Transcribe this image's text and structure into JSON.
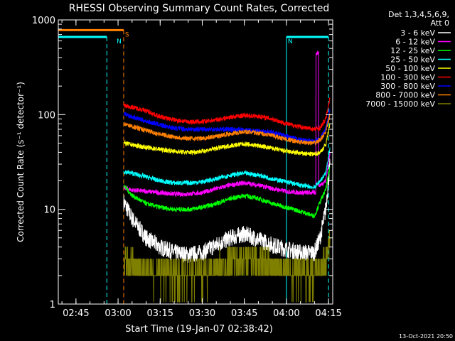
{
  "chart_data": {
    "type": "line",
    "title": "RHESSI Observing Summary Count Rates, Corrected",
    "xlabel": "Start Time (19-Jan-07 02:38:42)",
    "ylabel": "Corrected Count Rate (s⁻¹ detector⁻¹)",
    "yscale": "log",
    "ylim": [
      1,
      1000
    ],
    "xlim": [
      "02:38:42",
      "04:16:30"
    ],
    "x_ticks": [
      "02:45",
      "03:00",
      "03:15",
      "03:30",
      "03:45",
      "04:00",
      "04:15"
    ],
    "y_ticks": [
      "1",
      "10",
      "100",
      "1000"
    ],
    "legend": {
      "position": "top-right",
      "header": [
        "Det 1,3,4,5,6,9,",
        "Att 0"
      ]
    },
    "series": [
      {
        "name": "3 - 6 keV",
        "color": "#ffffff",
        "x": [
          "03:02:00",
          "03:05:00",
          "03:10:00",
          "03:15:00",
          "03:20:00",
          "03:25:00",
          "03:30:00",
          "03:35:00",
          "03:40:00",
          "03:45:00",
          "03:50:00",
          "03:55:00",
          "04:00:00",
          "04:05:00",
          "04:10:00",
          "04:12:00",
          "04:14:00",
          "04:15:30"
        ],
        "y": [
          12,
          8,
          5,
          4,
          3.5,
          3.3,
          3.5,
          4.2,
          5,
          5.5,
          4.8,
          4.2,
          3.8,
          3.5,
          3.5,
          5,
          10,
          30
        ]
      },
      {
        "name": "6 - 12 keV",
        "color": "#ff00ff",
        "x": [
          "03:02:00",
          "03:05:00",
          "03:10:00",
          "03:15:00",
          "03:20:00",
          "03:25:00",
          "03:30:00",
          "03:35:00",
          "03:40:00",
          "03:45:00",
          "03:50:00",
          "03:55:00",
          "04:00:00",
          "04:05:00",
          "04:10:00",
          "04:11:00",
          "04:12:00",
          "04:14:00",
          "04:15:30"
        ],
        "y": [
          17,
          16,
          15.5,
          15,
          14.5,
          14.5,
          15,
          16.5,
          18,
          19,
          18,
          16.5,
          15.5,
          15,
          15,
          450,
          18,
          20,
          40
        ]
      },
      {
        "name": "12 - 25 keV",
        "color": "#00ff00",
        "x": [
          "03:02:00",
          "03:05:00",
          "03:10:00",
          "03:15:00",
          "03:20:00",
          "03:25:00",
          "03:30:00",
          "03:35:00",
          "03:40:00",
          "03:45:00",
          "03:50:00",
          "03:55:00",
          "04:00:00",
          "04:05:00",
          "04:10:00",
          "04:12:00",
          "04:14:00",
          "04:15:30"
        ],
        "y": [
          18,
          14,
          11.5,
          10.5,
          10,
          10,
          10.5,
          11.5,
          13,
          14,
          13,
          11.5,
          10.5,
          9.5,
          8.5,
          12,
          16,
          28
        ]
      },
      {
        "name": "25 - 50 keV",
        "color": "#00ffff",
        "x": [
          "03:02:00",
          "03:05:00",
          "03:10:00",
          "03:15:00",
          "03:20:00",
          "03:25:00",
          "03:30:00",
          "03:35:00",
          "03:40:00",
          "03:45:00",
          "03:50:00",
          "03:55:00",
          "04:00:00",
          "04:05:00",
          "04:10:00",
          "04:12:00",
          "04:14:00",
          "04:15:30"
        ],
        "y": [
          25,
          24,
          22,
          20,
          19,
          19,
          19.5,
          21,
          23,
          24,
          23,
          21,
          19.5,
          18,
          17,
          20,
          24,
          45
        ]
      },
      {
        "name": "50 - 100 keV",
        "color": "#ffff00",
        "x": [
          "03:02:00",
          "03:05:00",
          "03:10:00",
          "03:15:00",
          "03:20:00",
          "03:25:00",
          "03:30:00",
          "03:35:00",
          "03:40:00",
          "03:45:00",
          "03:50:00",
          "03:55:00",
          "04:00:00",
          "04:05:00",
          "04:10:00",
          "04:12:00",
          "04:14:00",
          "04:15:30"
        ],
        "y": [
          50,
          48,
          45,
          43,
          41,
          40,
          41,
          44,
          47,
          49,
          47,
          44,
          41,
          39,
          38,
          40,
          48,
          80
        ]
      },
      {
        "name": "100 - 300 keV",
        "color": "#ff0000",
        "x": [
          "03:02:00",
          "03:05:00",
          "03:10:00",
          "03:15:00",
          "03:20:00",
          "03:25:00",
          "03:30:00",
          "03:35:00",
          "03:40:00",
          "03:45:00",
          "03:50:00",
          "03:55:00",
          "04:00:00",
          "04:05:00",
          "04:10:00",
          "04:12:00",
          "04:14:00",
          "04:15:30"
        ],
        "y": [
          125,
          120,
          110,
          95,
          88,
          84,
          84,
          88,
          94,
          98,
          96,
          90,
          80,
          74,
          70,
          72,
          90,
          150
        ]
      },
      {
        "name": "300 - 800 keV",
        "color": "#0000ff",
        "x": [
          "03:02:00",
          "03:05:00",
          "03:10:00",
          "03:15:00",
          "03:20:00",
          "03:25:00",
          "03:30:00",
          "03:35:00",
          "03:40:00",
          "03:45:00",
          "03:50:00",
          "03:55:00",
          "04:00:00",
          "04:05:00",
          "04:10:00",
          "04:12:00",
          "04:14:00",
          "04:15:30"
        ],
        "y": [
          102,
          95,
          85,
          78,
          72,
          70,
          70,
          70,
          70,
          69,
          67,
          65,
          59,
          54,
          52,
          56,
          70,
          115
        ]
      },
      {
        "name": "800 - 7000 keV",
        "color": "#ff8000",
        "x": [
          "03:02:00",
          "03:05:00",
          "03:10:00",
          "03:15:00",
          "03:20:00",
          "03:25:00",
          "03:30:00",
          "03:35:00",
          "03:40:00",
          "03:45:00",
          "03:50:00",
          "03:55:00",
          "04:00:00",
          "04:05:00",
          "04:10:00",
          "04:12:00",
          "04:14:00",
          "04:15:30"
        ],
        "y": [
          80,
          75,
          68,
          62,
          58,
          56,
          56,
          59,
          63,
          66,
          64,
          60,
          55,
          51,
          50,
          54,
          65,
          100
        ]
      },
      {
        "name": "7000 - 15000 keV",
        "color": "#808000",
        "x": [
          "03:02:00",
          "03:05:00",
          "03:10:00",
          "03:15:00",
          "03:20:00",
          "03:25:00",
          "03:30:00",
          "03:35:00",
          "03:40:00",
          "03:45:00",
          "03:50:00",
          "03:55:00",
          "04:00:00",
          "04:05:00",
          "04:10:00",
          "04:12:00",
          "04:14:00",
          "04:15:30"
        ],
        "y": [
          3,
          2.5,
          2.2,
          2.1,
          2,
          2,
          2,
          2.4,
          2.8,
          3,
          2.8,
          2.5,
          2.2,
          2,
          2,
          2.3,
          3,
          5
        ]
      }
    ],
    "annotations": [
      {
        "text": "N",
        "color": "#00ffff",
        "x": "03:00:00",
        "bar": [
          "02:38:42",
          "02:56:00"
        ],
        "bar_y": 660,
        "dashed_at": "02:56:00"
      },
      {
        "text": "S",
        "color": "#ff8000",
        "x": "03:03:00",
        "bar": [
          "02:38:42",
          "03:02:00"
        ],
        "bar_y": 780,
        "dashed_at": "03:02:00"
      },
      {
        "text": "N",
        "color": "#00ffff",
        "x": "04:01:00",
        "bar": [
          "04:00:00",
          "04:15:00"
        ],
        "bar_y": 660,
        "dashed_at": "04:15:00",
        "solid_at": "04:00:00"
      }
    ]
  },
  "footer": {
    "timestamp": "13-Oct-2021 20:50"
  }
}
